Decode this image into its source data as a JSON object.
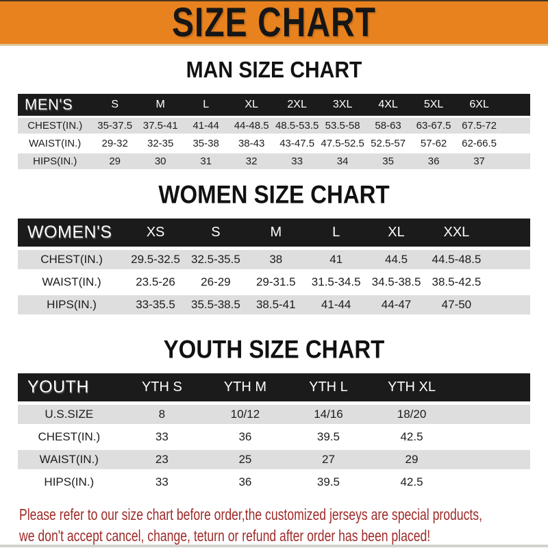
{
  "banner": {
    "title": "SIZE CHART"
  },
  "colors": {
    "banner_orange": "#E8821E",
    "header_black": "#1B1B1B",
    "row_gray": "#DEDEDE",
    "note_red": "#9E2B28"
  },
  "chart_data": [
    {
      "type": "table",
      "title": "MAN SIZE CHART",
      "header_label": "MEN'S",
      "columns": [
        "S",
        "M",
        "L",
        "XL",
        "2XL",
        "3XL",
        "4XL",
        "5XL",
        "6XL"
      ],
      "rows": [
        {
          "label": "CHEST(IN.)",
          "values": [
            "35-37.5",
            "37.5-41",
            "41-44",
            "44-48.5",
            "48.5-53.5",
            "53.5-58",
            "58-63",
            "63-67.5",
            "67.5-72"
          ]
        },
        {
          "label": "WAIST(IN.)",
          "values": [
            "29-32",
            "32-35",
            "35-38",
            "38-43",
            "43-47.5",
            "47.5-52.5",
            "52.5-57",
            "57-62",
            "62-66.5"
          ]
        },
        {
          "label": "HIPS(IN.)",
          "values": [
            "29",
            "30",
            "31",
            "32",
            "33",
            "34",
            "35",
            "36",
            "37"
          ]
        }
      ]
    },
    {
      "type": "table",
      "title": "WOMEN SIZE CHART",
      "header_label": "WOMEN'S",
      "columns": [
        "XS",
        "S",
        "M",
        "L",
        "XL",
        "XXL"
      ],
      "rows": [
        {
          "label": "CHEST(IN.)",
          "values": [
            "29.5-32.5",
            "32.5-35.5",
            "38",
            "41",
            "44.5",
            "44.5-48.5"
          ]
        },
        {
          "label": "WAIST(IN.)",
          "values": [
            "23.5-26",
            "26-29",
            "29-31.5",
            "31.5-34.5",
            "34.5-38.5",
            "38.5-42.5"
          ]
        },
        {
          "label": "HIPS(IN.)",
          "values": [
            "33-35.5",
            "35.5-38.5",
            "38.5-41",
            "41-44",
            "44-47",
            "47-50"
          ]
        }
      ]
    },
    {
      "type": "table",
      "title": "YOUTH SIZE CHART",
      "header_label": "YOUTH",
      "columns": [
        "YTH S",
        "YTH M",
        "YTH L",
        "YTH XL"
      ],
      "rows": [
        {
          "label": "U.S.SIZE",
          "values": [
            "8",
            "10/12",
            "14/16",
            "18/20"
          ]
        },
        {
          "label": "CHEST(IN.)",
          "values": [
            "33",
            "36",
            "39.5",
            "42.5"
          ]
        },
        {
          "label": "WAIST(IN.)",
          "values": [
            "23",
            "25",
            "27",
            "29"
          ]
        },
        {
          "label": "HIPS(IN.)",
          "values": [
            "33",
            "36",
            "39.5",
            "42.5"
          ]
        }
      ]
    }
  ],
  "footer": {
    "line1": "Please refer to our size chart before order,the customized jerseys are special products,",
    "line2": "we don't accept cancel, change, teturn or refund after order has been placed!"
  }
}
